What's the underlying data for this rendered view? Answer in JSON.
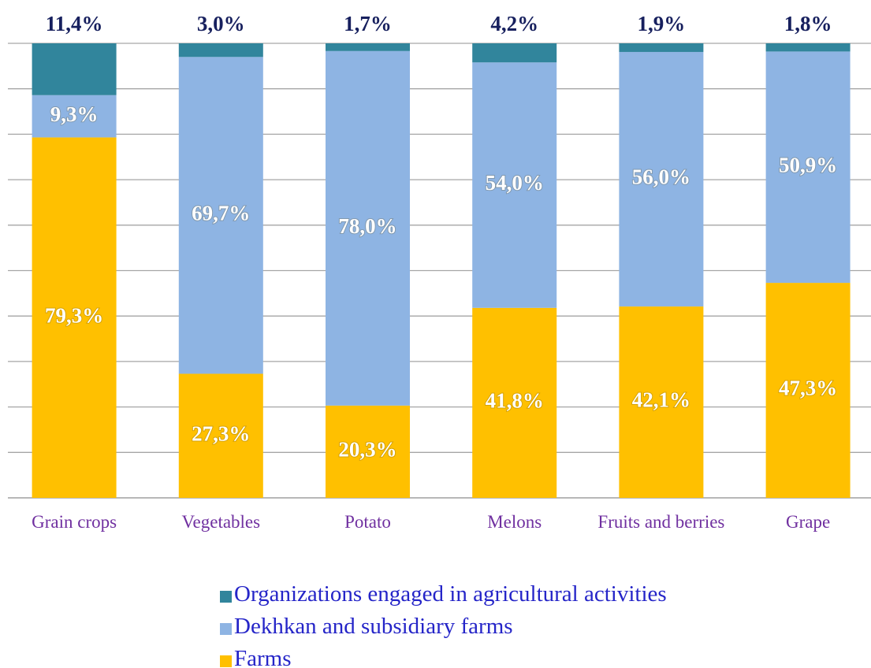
{
  "chart_data": {
    "type": "stacked_bar",
    "categories": [
      "Grain crops",
      "Vegetables",
      "Potato",
      "Melons",
      "Fruits and berries",
      "Grape"
    ],
    "series": [
      {
        "name": "Farms",
        "color": "#ffc000",
        "values": [
          79.3,
          27.3,
          20.3,
          41.8,
          42.1,
          47.3
        ],
        "value_labels": [
          "79,3%",
          "27,3%",
          "20,3%",
          "41,8%",
          "42,1%",
          "47,3%"
        ]
      },
      {
        "name": "Dekhkan and subsidiary farms",
        "color": "#8eb4e3",
        "values": [
          9.3,
          69.7,
          78.0,
          54.0,
          56.0,
          50.9
        ],
        "value_labels": [
          "9,3%",
          "69,7%",
          "78,0%",
          "54,0%",
          "56,0%",
          "50,9%"
        ]
      },
      {
        "name": "Organizations engaged in agricultural activities",
        "color": "#31859c",
        "values": [
          11.4,
          3.0,
          1.7,
          4.2,
          1.9,
          1.8
        ],
        "value_labels": [
          "11,4%",
          "3,0%",
          "1,7%",
          "4,2%",
          "1,9%",
          "1,8%"
        ]
      }
    ],
    "ylim": [
      0,
      100
    ],
    "yticks": [
      0,
      10,
      20,
      30,
      40,
      50,
      60,
      70,
      80,
      90,
      100
    ],
    "grid": true
  }
}
